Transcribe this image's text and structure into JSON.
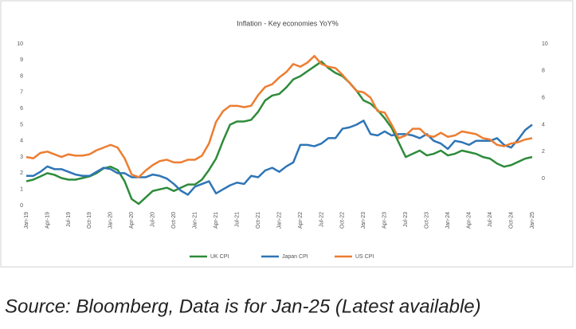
{
  "chart_data": {
    "type": "line",
    "title": "Inflation - Key economies YoY%",
    "categories": [
      "Jan-19",
      null,
      null,
      "Apr-19",
      null,
      null,
      "Jul-19",
      null,
      null,
      "Oct-19",
      null,
      null,
      "Jan-20",
      null,
      null,
      "Apr-20",
      null,
      null,
      "Jul-20",
      null,
      null,
      "Oct-20",
      null,
      null,
      "Jan-21",
      null,
      null,
      "Apr-21",
      null,
      null,
      "Jul-21",
      null,
      null,
      "Oct-21",
      null,
      null,
      "Jan-22",
      null,
      null,
      "Apr-22",
      null,
      null,
      "Jul-22",
      null,
      null,
      "Oct-22",
      null,
      null,
      "Jan-23",
      null,
      null,
      "Apr-23",
      null,
      null,
      "Jul-23",
      null,
      null,
      "Oct-23",
      null,
      null,
      "Jan-24",
      null,
      null,
      "Apr-24",
      null,
      null,
      "Jul-24",
      null,
      null,
      "Oct-24",
      null,
      null,
      "Jan-25"
    ],
    "series": [
      {
        "name": "UK CPI",
        "color": "#2e8b3a",
        "values": [
          1.5,
          1.6,
          1.8,
          2.0,
          1.9,
          1.7,
          1.6,
          1.6,
          1.7,
          1.8,
          2.0,
          2.3,
          2.4,
          2.2,
          1.5,
          0.4,
          0.1,
          0.5,
          0.9,
          1.0,
          1.1,
          0.9,
          1.1,
          1.3,
          1.3,
          1.6,
          2.2,
          2.9,
          4.0,
          5.0,
          5.2,
          5.2,
          5.3,
          5.8,
          6.5,
          6.8,
          6.9,
          7.3,
          7.8,
          8.0,
          8.3,
          8.6,
          8.9,
          8.5,
          8.2,
          8.0,
          7.6,
          7.1,
          6.5,
          6.3,
          5.9,
          5.4,
          4.8,
          3.9,
          3.0,
          3.2,
          3.4,
          3.1,
          3.2,
          3.4,
          3.1,
          3.2,
          3.4,
          3.3,
          3.2,
          3.0,
          2.9,
          2.6,
          2.4,
          2.5,
          2.7,
          2.9,
          3.0
        ]
      },
      {
        "name": "Japan CPI",
        "color": "#2e75b6",
        "axis": "y2",
        "values": [
          0.2,
          0.2,
          0.5,
          0.9,
          0.7,
          0.7,
          0.5,
          0.3,
          0.2,
          0.2,
          0.5,
          0.8,
          0.7,
          0.4,
          0.4,
          0.1,
          0.1,
          0.1,
          0.3,
          0.2,
          0.0,
          -0.4,
          -0.9,
          -1.2,
          -0.6,
          -0.4,
          -0.2,
          -1.1,
          -0.8,
          -0.5,
          -0.3,
          -0.4,
          0.2,
          0.1,
          0.6,
          0.8,
          0.5,
          0.9,
          1.2,
          2.5,
          2.5,
          2.4,
          2.6,
          3.0,
          3.0,
          3.7,
          3.8,
          4.0,
          4.3,
          3.3,
          3.2,
          3.5,
          3.2,
          3.3,
          3.3,
          3.2,
          3.0,
          3.3,
          2.8,
          2.6,
          2.2,
          2.8,
          2.7,
          2.5,
          2.8,
          2.8,
          2.8,
          3.0,
          2.5,
          2.3,
          2.9,
          3.6,
          4.0
        ]
      },
      {
        "name": "US CPI",
        "color": "#ed7d31",
        "axis": "y2",
        "values": [
          1.6,
          1.5,
          1.9,
          2.0,
          1.8,
          1.6,
          1.8,
          1.7,
          1.7,
          1.8,
          2.1,
          2.3,
          2.5,
          2.3,
          1.5,
          0.3,
          0.1,
          0.6,
          1.0,
          1.3,
          1.4,
          1.2,
          1.2,
          1.4,
          1.4,
          1.7,
          2.6,
          4.2,
          5.0,
          5.4,
          5.4,
          5.3,
          5.4,
          6.2,
          6.8,
          7.0,
          7.5,
          7.9,
          8.5,
          8.3,
          8.6,
          9.1,
          8.5,
          8.3,
          8.2,
          7.7,
          7.1,
          6.5,
          6.4,
          6.0,
          5.0,
          4.9,
          4.0,
          3.0,
          3.2,
          3.7,
          3.7,
          3.2,
          3.1,
          3.4,
          3.1,
          3.2,
          3.5,
          3.4,
          3.3,
          3.0,
          2.9,
          2.5,
          2.4,
          2.6,
          2.7,
          2.9,
          3.0
        ]
      }
    ],
    "ylim": [
      0,
      10
    ],
    "yticks": [
      0,
      1,
      2,
      3,
      4,
      5,
      6,
      7,
      8,
      9,
      10
    ],
    "y2lim": [
      -2,
      10
    ],
    "y2ticks": [
      0,
      2,
      4,
      6,
      8,
      10
    ],
    "legend": "bottom"
  },
  "source": "Source: Bloomberg, Data is for Jan-25 (Latest available)"
}
